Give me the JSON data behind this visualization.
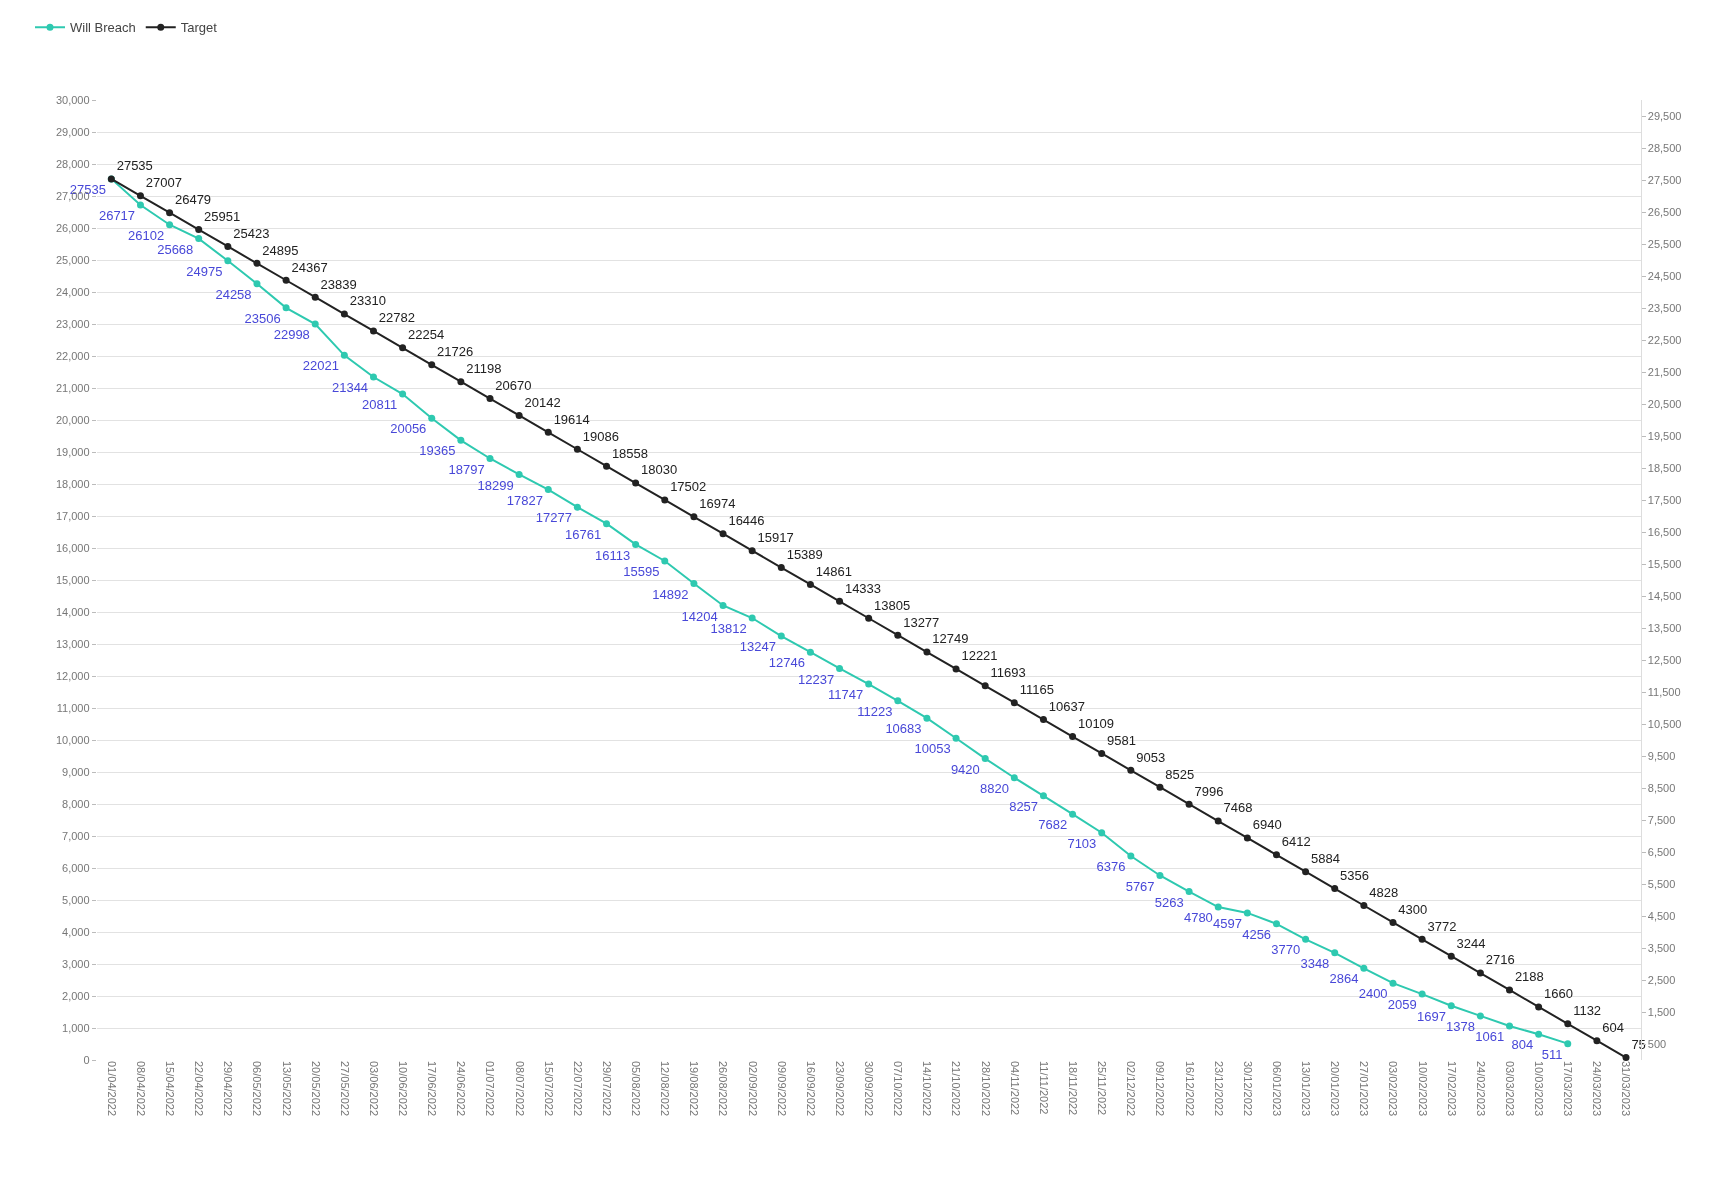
{
  "chart_data": {
    "type": "line",
    "categories": [
      "01/04/2022",
      "08/04/2022",
      "15/04/2022",
      "22/04/2022",
      "29/04/2022",
      "06/05/2022",
      "13/05/2022",
      "20/05/2022",
      "27/05/2022",
      "03/06/2022",
      "10/06/2022",
      "17/06/2022",
      "24/06/2022",
      "01/07/2022",
      "08/07/2022",
      "15/07/2022",
      "22/07/2022",
      "29/07/2022",
      "05/08/2022",
      "12/08/2022",
      "19/08/2022",
      "26/08/2022",
      "02/09/2022",
      "09/09/2022",
      "16/09/2022",
      "23/09/2022",
      "30/09/2022",
      "07/10/2022",
      "14/10/2022",
      "21/10/2022",
      "28/10/2022",
      "04/11/2022",
      "11/11/2022",
      "18/11/2022",
      "25/11/2022",
      "02/12/2022",
      "09/12/2022",
      "16/12/2022",
      "23/12/2022",
      "30/12/2022",
      "06/01/2023",
      "13/01/2023",
      "20/01/2023",
      "27/01/2023",
      "03/02/2023",
      "10/02/2023",
      "17/02/2023",
      "24/02/2023",
      "03/03/2023",
      "10/03/2023",
      "17/03/2023",
      "24/03/2023",
      "31/03/2023"
    ],
    "series": [
      {
        "name": "Will Breach",
        "color": "#2ec9b0",
        "values": [
          27535,
          26717,
          26102,
          25668,
          24975,
          24258,
          23506,
          22998,
          22021,
          21344,
          20811,
          20056,
          19365,
          18797,
          18299,
          17827,
          17277,
          16761,
          16113,
          15595,
          14892,
          14204,
          13812,
          13247,
          12746,
          12237,
          11747,
          11223,
          10683,
          10053,
          9420,
          8820,
          8257,
          7682,
          7103,
          6376,
          5767,
          5263,
          4780,
          4597,
          4256,
          3770,
          3348,
          2864,
          2400,
          2059,
          1697,
          1378,
          1061,
          804,
          511,
          null,
          null
        ]
      },
      {
        "name": "Target",
        "color": "#222222",
        "values": [
          27535,
          27007,
          26479,
          25951,
          25423,
          24895,
          24367,
          23839,
          23310,
          22782,
          22254,
          21726,
          21198,
          20670,
          20142,
          19614,
          19086,
          18558,
          18030,
          17502,
          16974,
          16446,
          15917,
          15389,
          14861,
          14333,
          13805,
          13277,
          12749,
          12221,
          11693,
          11165,
          10637,
          10109,
          9581,
          9053,
          8525,
          7996,
          7468,
          6940,
          6412,
          5884,
          5356,
          4828,
          4300,
          3772,
          3244,
          2716,
          2188,
          1660,
          1132,
          604,
          75
        ]
      }
    ],
    "ylim": [
      0,
      30000
    ],
    "yticks": [
      {
        "value": 0,
        "label": "0"
      },
      {
        "value": 1000,
        "label": "1,000"
      },
      {
        "value": 2000,
        "label": "2,000"
      },
      {
        "value": 3000,
        "label": "3,000"
      },
      {
        "value": 4000,
        "label": "4,000"
      },
      {
        "value": 5000,
        "label": "5,000"
      },
      {
        "value": 6000,
        "label": "6,000"
      },
      {
        "value": 7000,
        "label": "7,000"
      },
      {
        "value": 8000,
        "label": "8,000"
      },
      {
        "value": 9000,
        "label": "9,000"
      },
      {
        "value": 10000,
        "label": "10,000"
      },
      {
        "value": 11000,
        "label": "11,000"
      },
      {
        "value": 12000,
        "label": "12,000"
      },
      {
        "value": 13000,
        "label": "13,000"
      },
      {
        "value": 14000,
        "label": "14,000"
      },
      {
        "value": 15000,
        "label": "15,000"
      },
      {
        "value": 16000,
        "label": "16,000"
      },
      {
        "value": 17000,
        "label": "17,000"
      },
      {
        "value": 18000,
        "label": "18,000"
      },
      {
        "value": 19000,
        "label": "19,000"
      },
      {
        "value": 20000,
        "label": "20,000"
      },
      {
        "value": 21000,
        "label": "21,000"
      },
      {
        "value": 22000,
        "label": "22,000"
      },
      {
        "value": 23000,
        "label": "23,000"
      },
      {
        "value": 24000,
        "label": "24,000"
      },
      {
        "value": 25000,
        "label": "25,000"
      },
      {
        "value": 26000,
        "label": "26,000"
      },
      {
        "value": 27000,
        "label": "27,000"
      },
      {
        "value": 28000,
        "label": "28,000"
      },
      {
        "value": 29000,
        "label": "29,000"
      },
      {
        "value": 30000,
        "label": "30,000"
      }
    ],
    "y2lim": [
      0,
      30000
    ],
    "y2ticks": [
      {
        "value": 500,
        "label": "500"
      },
      {
        "value": 1500,
        "label": "1,500"
      },
      {
        "value": 2500,
        "label": "2,500"
      },
      {
        "value": 3500,
        "label": "3,500"
      },
      {
        "value": 4500,
        "label": "4,500"
      },
      {
        "value": 5500,
        "label": "5,500"
      },
      {
        "value": 6500,
        "label": "6,500"
      },
      {
        "value": 7500,
        "label": "7,500"
      },
      {
        "value": 8500,
        "label": "8,500"
      },
      {
        "value": 9500,
        "label": "9,500"
      },
      {
        "value": 10500,
        "label": "10,500"
      },
      {
        "value": 11500,
        "label": "11,500"
      },
      {
        "value": 12500,
        "label": "12,500"
      },
      {
        "value": 13500,
        "label": "13,500"
      },
      {
        "value": 14500,
        "label": "14,500"
      },
      {
        "value": 15500,
        "label": "15,500"
      },
      {
        "value": 16500,
        "label": "16,500"
      },
      {
        "value": 17500,
        "label": "17,500"
      },
      {
        "value": 18500,
        "label": "18,500"
      },
      {
        "value": 19500,
        "label": "19,500"
      },
      {
        "value": 20500,
        "label": "20,500"
      },
      {
        "value": 21500,
        "label": "21,500"
      },
      {
        "value": 22500,
        "label": "22,500"
      },
      {
        "value": 23500,
        "label": "23,500"
      },
      {
        "value": 24500,
        "label": "24,500"
      },
      {
        "value": 25500,
        "label": "25,500"
      },
      {
        "value": 26500,
        "label": "26,500"
      },
      {
        "value": 27500,
        "label": "27,500"
      },
      {
        "value": 28500,
        "label": "28,500"
      },
      {
        "value": 29500,
        "label": "29,500"
      }
    ],
    "grid": "y",
    "legend": "top left",
    "marker": "circle",
    "line_style": "solid",
    "data_labels": true
  }
}
